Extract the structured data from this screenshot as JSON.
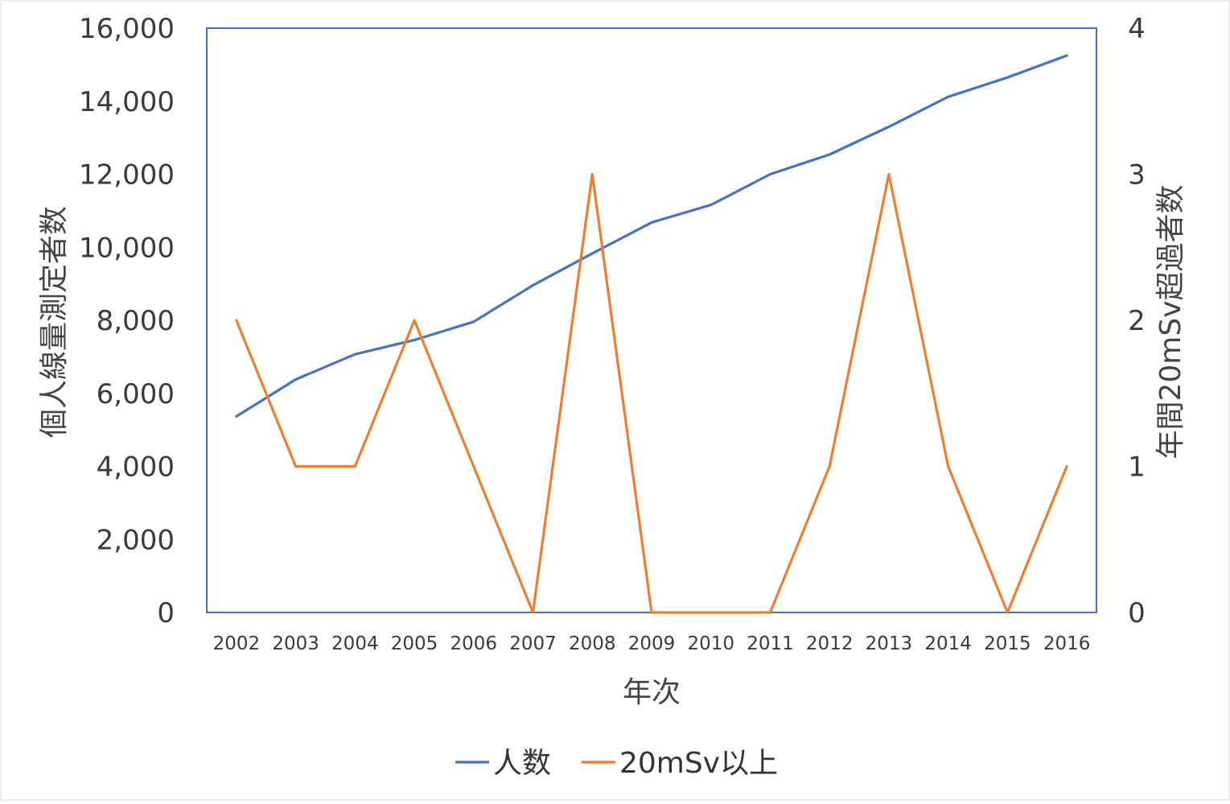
{
  "chart_data": {
    "type": "line",
    "title": "",
    "xlabel": "年次",
    "ylabel_left": "個人線量測定者数",
    "ylabel_right": "年間20mSv超過者数",
    "ylim_left": [
      0,
      16000
    ],
    "ylim_right": [
      0,
      4
    ],
    "yticks_left": [
      "0",
      "2,000",
      "4,000",
      "6,000",
      "8,000",
      "10,000",
      "12,000",
      "14,000",
      "16,000"
    ],
    "yticks_right": [
      "0",
      "1",
      "2",
      "3",
      "4"
    ],
    "categories": [
      "2002",
      "2003",
      "2004",
      "2005",
      "2006",
      "2007",
      "2008",
      "2009",
      "2010",
      "2011",
      "2012",
      "2013",
      "2014",
      "2015",
      "2016"
    ],
    "legend_position": "bottom",
    "grid": false,
    "series": [
      {
        "name": "人数",
        "axis": "left",
        "color": "#4472c4",
        "values": [
          5370,
          6380,
          7070,
          7460,
          7960,
          8960,
          9830,
          10680,
          11160,
          12000,
          12540,
          13300,
          14120,
          14650,
          15250
        ]
      },
      {
        "name": "20mSv以上",
        "axis": "right",
        "color": "#ed7d31",
        "values": [
          2,
          1,
          1,
          2,
          1,
          0,
          3,
          0,
          0,
          0,
          1,
          3,
          1,
          0,
          1
        ]
      }
    ]
  }
}
